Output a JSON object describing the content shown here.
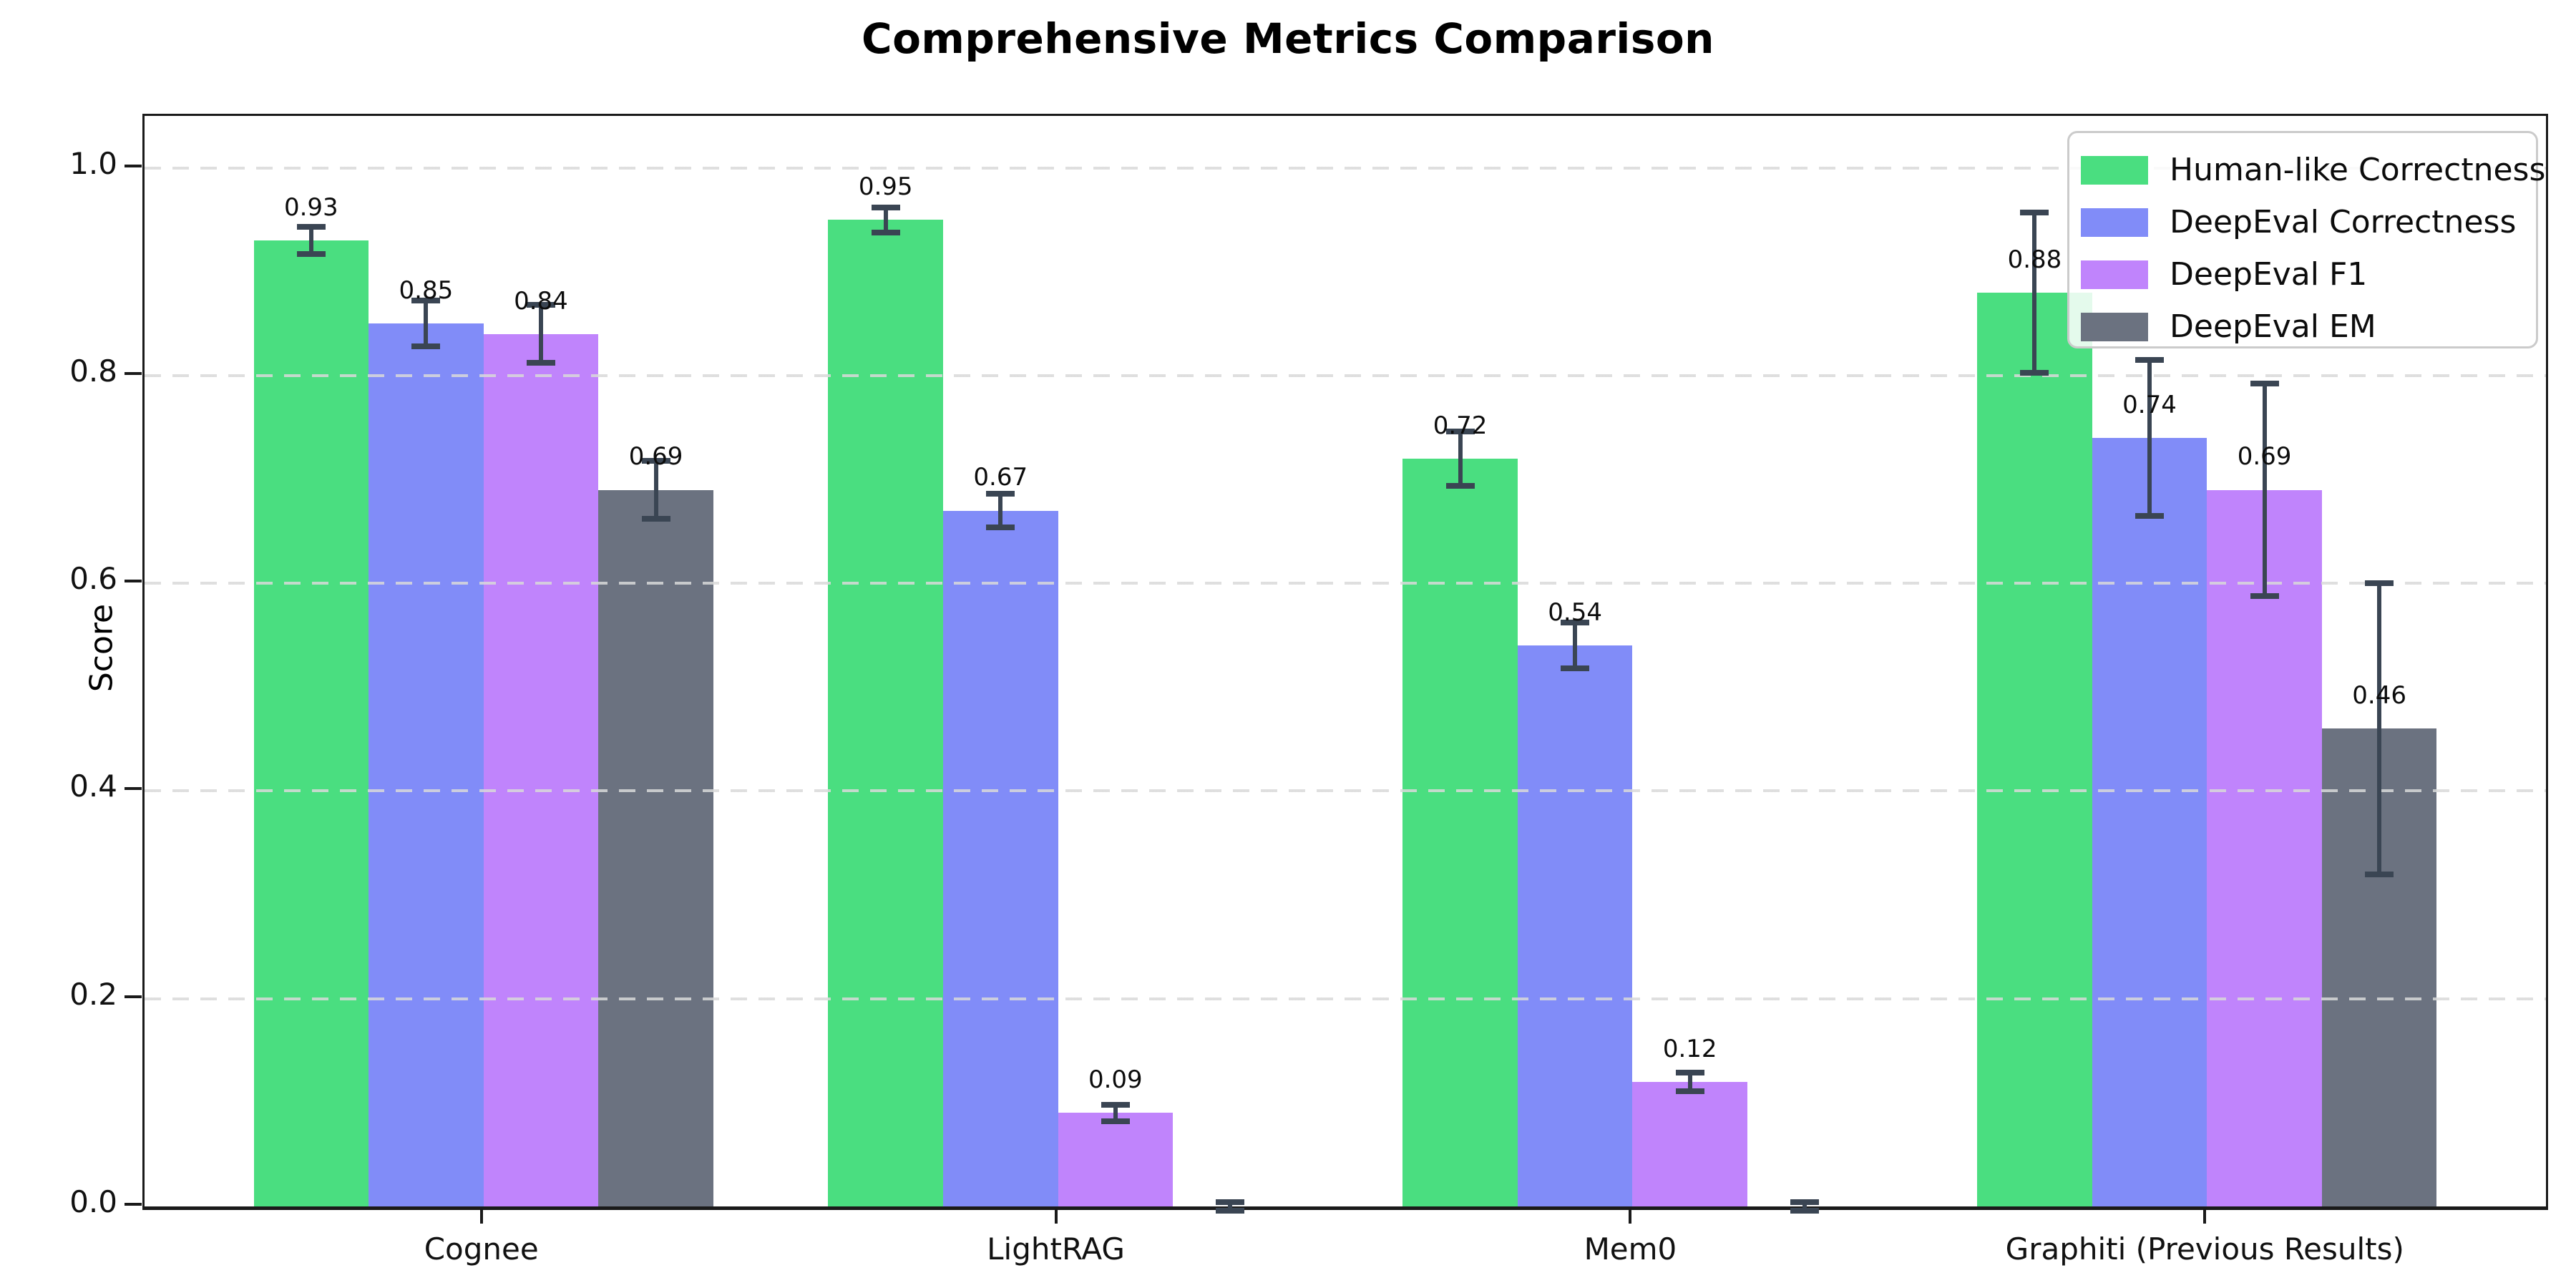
{
  "title": "Comprehensive Metrics Comparison",
  "chart_data": {
    "type": "bar",
    "title": "Comprehensive Metrics Comparison",
    "ylabel": "Score",
    "xlabel": "",
    "categories": [
      "Cognee",
      "LightRAG",
      "Mem0",
      "Graphiti (Previous Results)"
    ],
    "series": [
      {
        "name": "Human-like Correctness",
        "color": "#4ade80",
        "values": [
          0.93,
          0.95,
          0.72,
          0.88
        ],
        "errors": [
          0.013,
          0.012,
          0.026,
          0.077
        ],
        "labels": [
          "0.93",
          "0.95",
          "0.72",
          "0.88"
        ]
      },
      {
        "name": "DeepEval Correctness",
        "color": "#818cf8",
        "values": [
          0.85,
          0.67,
          0.54,
          0.74
        ],
        "errors": [
          0.022,
          0.016,
          0.022,
          0.075
        ],
        "labels": [
          "0.85",
          "0.67",
          "0.54",
          "0.74"
        ]
      },
      {
        "name": "DeepEval F1",
        "color": "#c084fc",
        "values": [
          0.84,
          0.09,
          0.12,
          0.69
        ],
        "errors": [
          0.028,
          0.008,
          0.009,
          0.102
        ],
        "labels": [
          "0.84",
          "0.09",
          "0.12",
          "0.69"
        ]
      },
      {
        "name": "DeepEval EM",
        "color": "#6b7280",
        "values": [
          0.69,
          0.0,
          0.0,
          0.46
        ],
        "errors": [
          0.028,
          0.004,
          0.004,
          0.14
        ],
        "labels": [
          "0.69",
          "",
          "",
          "0.46"
        ]
      }
    ],
    "yticks": [
      "0.0",
      "0.2",
      "0.4",
      "0.6",
      "0.8",
      "1.0"
    ],
    "ylim": [
      0,
      1.05
    ],
    "grid": "horizontal-dashed",
    "grid_color": "#d9d9d9",
    "legend_position": "upper-right",
    "errorbar_color": "#3a4553",
    "axis_color": "#1a1a1a"
  }
}
